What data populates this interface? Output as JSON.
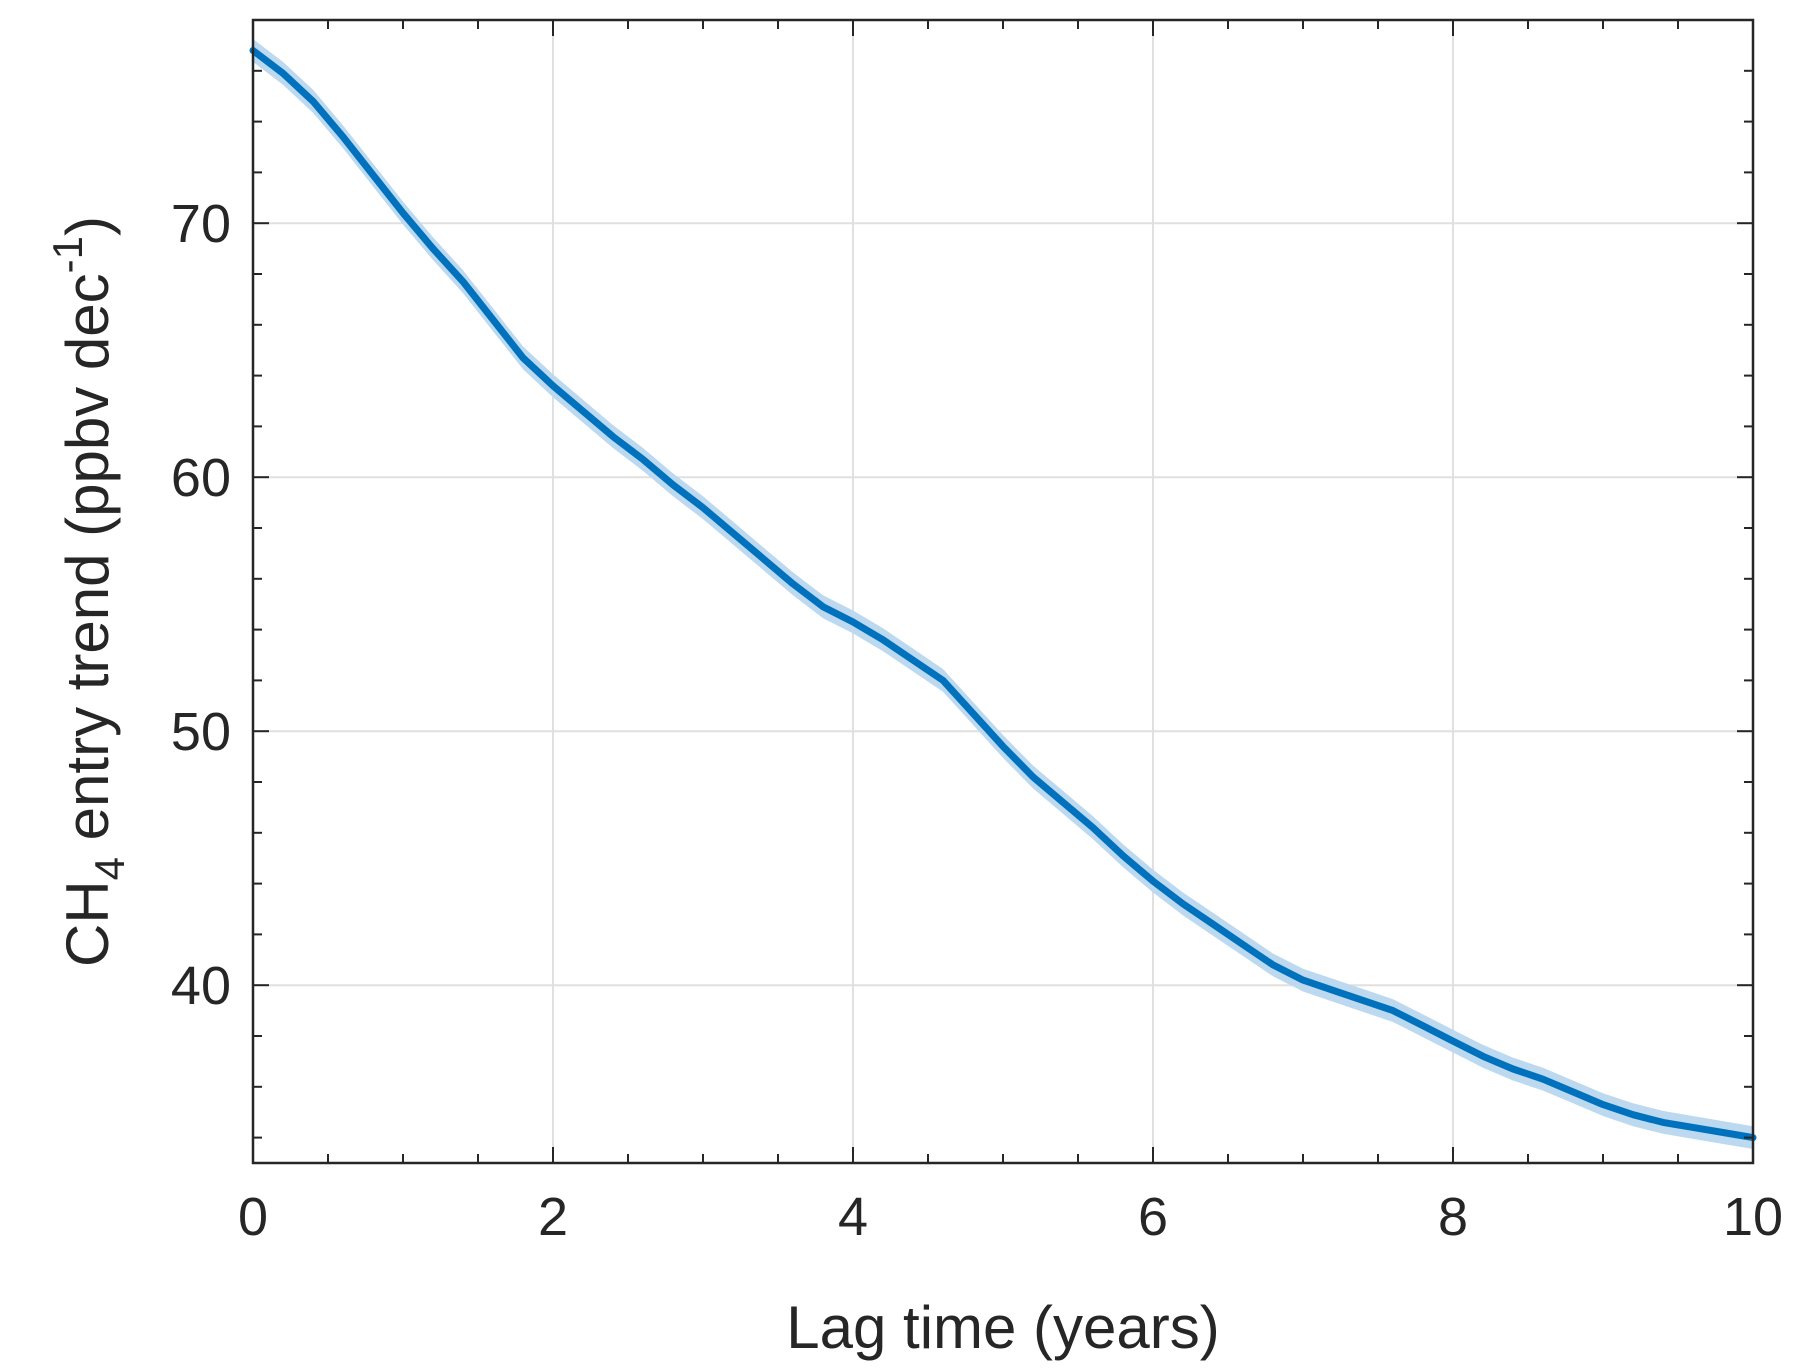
{
  "chart_data": {
    "type": "line",
    "xlabel": "Lag time (years)",
    "ylabel": {
      "prefix": "CH",
      "subscript": "4",
      "middle": " entry trend (ppbv dec",
      "superscript": "-1",
      "suffix": ")"
    },
    "xlim": [
      0,
      10
    ],
    "ylim": [
      33,
      78
    ],
    "xticks": [
      0,
      2,
      4,
      6,
      8,
      10
    ],
    "yticks": [
      40,
      50,
      60,
      70
    ],
    "grid": true,
    "colors": {
      "line": "#0072BD",
      "band": "#bcd9ef",
      "axis": "#262626",
      "grid": "#e0e0e0"
    },
    "series": [
      {
        "x": [
          0,
          0.2,
          0.4,
          0.6,
          0.8,
          1.0,
          1.2,
          1.4,
          1.6,
          1.8,
          2.0,
          2.2,
          2.4,
          2.6,
          2.8,
          3.0,
          3.2,
          3.4,
          3.6,
          3.8,
          4.0,
          4.2,
          4.4,
          4.6,
          4.8,
          5.0,
          5.2,
          5.4,
          5.6,
          5.8,
          6.0,
          6.2,
          6.4,
          6.6,
          6.8,
          7.0,
          7.2,
          7.4,
          7.6,
          7.8,
          8.0,
          8.2,
          8.4,
          8.6,
          8.8,
          9.0,
          9.2,
          9.4,
          9.6,
          9.8,
          10.0
        ],
        "y": [
          76.8,
          75.9,
          74.8,
          73.4,
          71.9,
          70.4,
          69.0,
          67.7,
          66.2,
          64.7,
          63.6,
          62.6,
          61.6,
          60.7,
          59.7,
          58.8,
          57.8,
          56.8,
          55.8,
          54.9,
          54.3,
          53.6,
          52.8,
          52.0,
          50.7,
          49.4,
          48.2,
          47.2,
          46.2,
          45.1,
          44.1,
          43.2,
          42.4,
          41.6,
          40.8,
          40.2,
          39.8,
          39.4,
          39.0,
          38.4,
          37.8,
          37.2,
          36.7,
          36.3,
          35.8,
          35.3,
          34.9,
          34.6,
          34.4,
          34.2,
          34.0
        ],
        "band": 0.45
      }
    ]
  }
}
